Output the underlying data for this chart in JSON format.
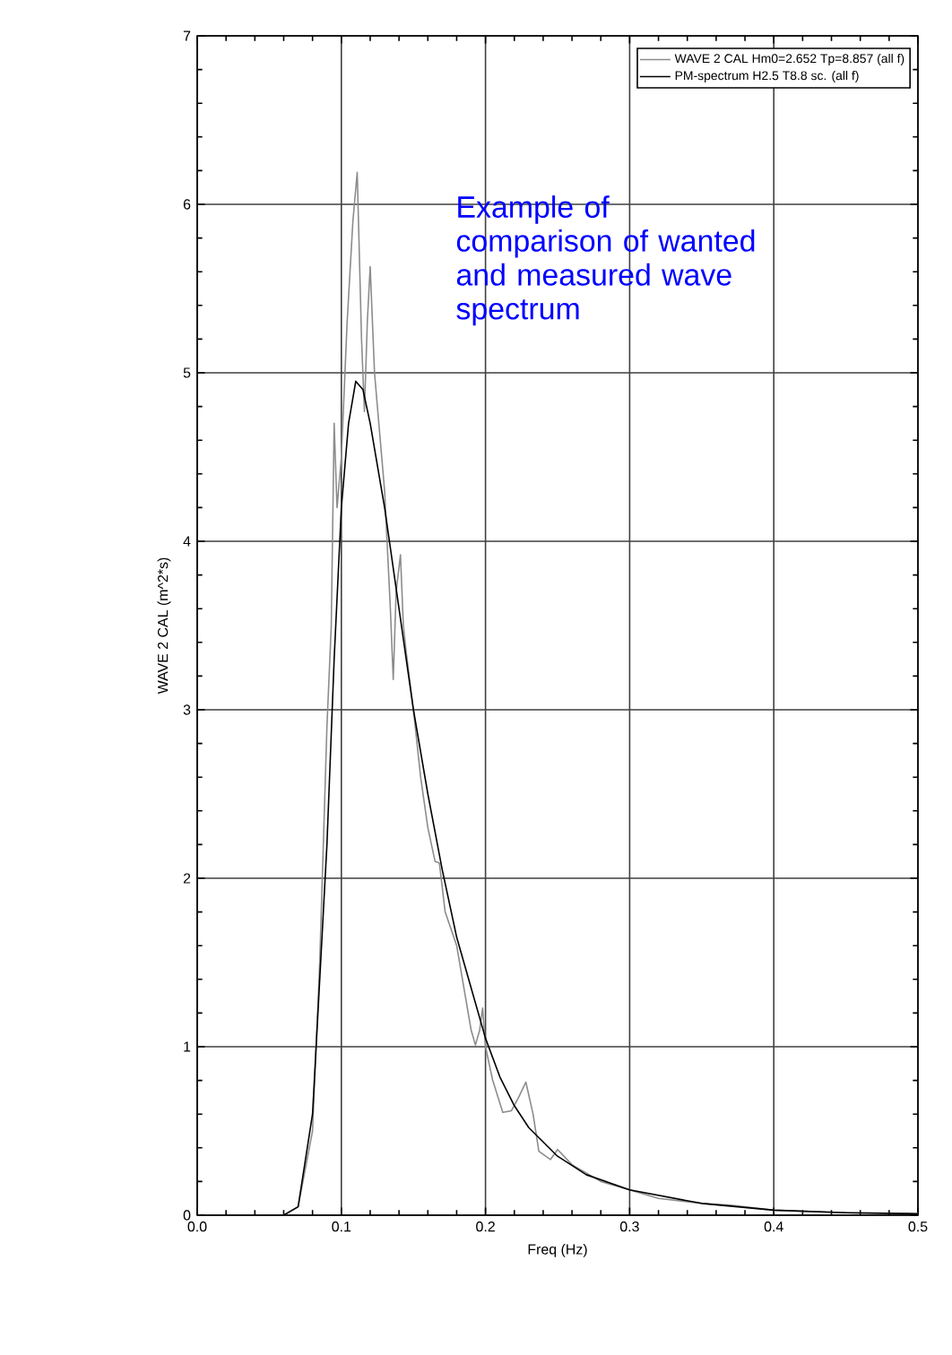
{
  "chart_data": {
    "type": "line",
    "xlabel": "Freq (Hz)",
    "ylabel": "WAVE 2 CAL (m^2*s)",
    "xlim": [
      0,
      0.5
    ],
    "ylim": [
      0,
      7
    ],
    "xticks": [
      {
        "value": 0,
        "label": "0.0"
      },
      {
        "value": 0.1,
        "label": "0.1"
      },
      {
        "value": 0.2,
        "label": "0.2"
      },
      {
        "value": 0.3,
        "label": "0.3"
      },
      {
        "value": 0.4,
        "label": "0.4"
      },
      {
        "value": 0.5,
        "label": "0.5"
      }
    ],
    "yticks": [
      0,
      1,
      2,
      3,
      4,
      5,
      6,
      7
    ],
    "grid": true,
    "legend": "top right",
    "line_style": "solid",
    "annotations": [
      "Example of comparison of wanted and measured wave spectrum"
    ],
    "series": [
      {
        "name": "WAVE 2 CAL  Hm0=2.652 Tp=8.857 (all f)",
        "color": "#8c8c8c",
        "x": [
          0.06,
          0.07,
          0.08,
          0.085,
          0.09,
          0.093,
          0.095,
          0.097,
          0.1,
          0.104,
          0.108,
          0.111,
          0.114,
          0.116,
          0.118,
          0.12,
          0.123,
          0.127,
          0.13,
          0.134,
          0.136,
          0.138,
          0.141,
          0.143,
          0.145,
          0.15,
          0.155,
          0.16,
          0.165,
          0.168,
          0.172,
          0.18,
          0.186,
          0.19,
          0.193,
          0.196,
          0.198,
          0.2,
          0.205,
          0.212,
          0.218,
          0.223,
          0.228,
          0.233,
          0.237,
          0.245,
          0.25,
          0.26,
          0.28,
          0.3,
          0.32,
          0.35,
          0.37,
          0.4,
          0.45,
          0.5
        ],
        "values": [
          0,
          0.05,
          0.5,
          1.5,
          2.9,
          3.5,
          4.7,
          4.2,
          4.5,
          5.3,
          5.9,
          6.19,
          5.2,
          4.77,
          5.3,
          5.63,
          5.0,
          4.6,
          4.3,
          3.6,
          3.18,
          3.7,
          3.92,
          3.5,
          3.34,
          3.0,
          2.6,
          2.3,
          2.1,
          2.09,
          1.8,
          1.6,
          1.3,
          1.1,
          1.01,
          1.1,
          1.23,
          1.0,
          0.8,
          0.61,
          0.62,
          0.7,
          0.79,
          0.6,
          0.38,
          0.33,
          0.39,
          0.3,
          0.2,
          0.15,
          0.1,
          0.07,
          0.06,
          0.03,
          0.015,
          0.01
        ]
      },
      {
        "name": "PM-spectrum H2.5 T8.8 sc. (all f)",
        "color": "#000000",
        "x": [
          0.06,
          0.07,
          0.08,
          0.09,
          0.095,
          0.1,
          0.105,
          0.11,
          0.115,
          0.12,
          0.13,
          0.14,
          0.15,
          0.16,
          0.17,
          0.18,
          0.19,
          0.2,
          0.21,
          0.22,
          0.23,
          0.25,
          0.27,
          0.3,
          0.35,
          0.4,
          0.45,
          0.5
        ],
        "values": [
          0,
          0.05,
          0.6,
          2.2,
          3.3,
          4.2,
          4.7,
          4.95,
          4.9,
          4.7,
          4.2,
          3.6,
          3.0,
          2.5,
          2.05,
          1.65,
          1.35,
          1.05,
          0.82,
          0.65,
          0.52,
          0.35,
          0.24,
          0.15,
          0.07,
          0.03,
          0.015,
          0.008
        ]
      }
    ]
  }
}
